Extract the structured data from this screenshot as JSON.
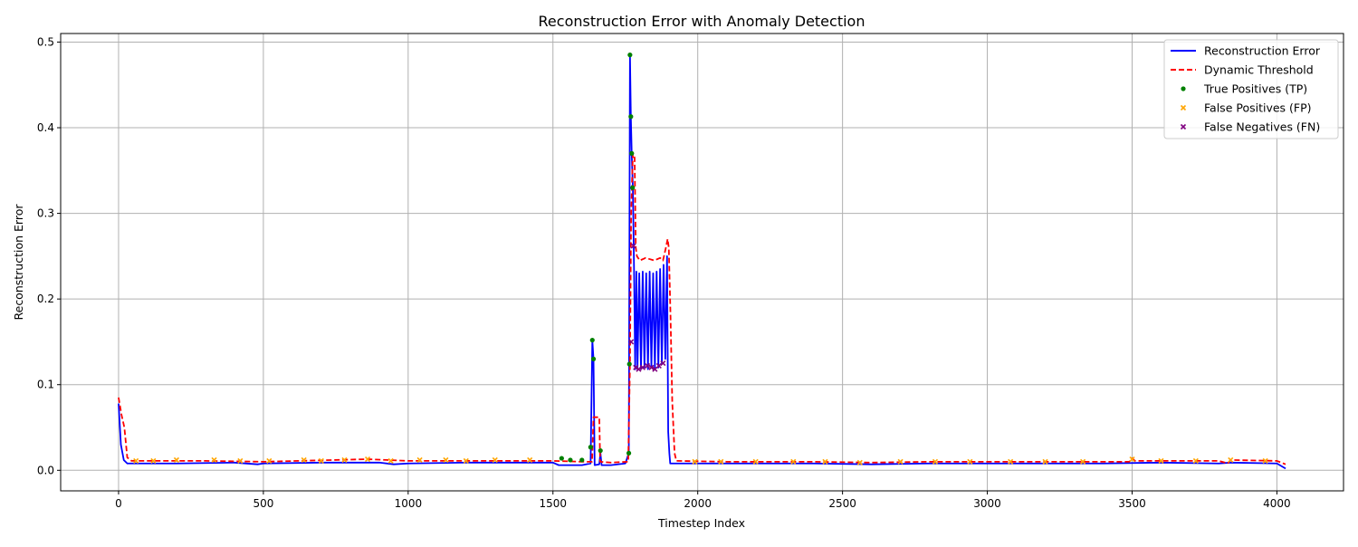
{
  "chart_data": {
    "type": "line",
    "title": "Reconstruction Error with Anomaly Detection",
    "xlabel": "Timestep Index",
    "ylabel": "Reconstruction Error",
    "xlim": [
      -200,
      4230
    ],
    "ylim": [
      -0.024,
      0.51
    ],
    "xticks": [
      0,
      500,
      1000,
      1500,
      2000,
      2500,
      3000,
      3500,
      4000
    ],
    "yticks": [
      0.0,
      0.1,
      0.2,
      0.3,
      0.4,
      0.5
    ],
    "grid": true,
    "legend_position": "top-right",
    "colors": {
      "error": "#0000ff",
      "threshold": "#ff0000",
      "tp": "#008000",
      "fp": "#ffa500",
      "fn": "#800080"
    },
    "series": [
      {
        "name": "Reconstruction Error",
        "style": "solid",
        "points": [
          [
            0,
            0.078
          ],
          [
            8,
            0.03
          ],
          [
            18,
            0.012
          ],
          [
            30,
            0.008
          ],
          [
            200,
            0.008
          ],
          [
            400,
            0.009
          ],
          [
            480,
            0.007
          ],
          [
            500,
            0.008
          ],
          [
            700,
            0.009
          ],
          [
            900,
            0.009
          ],
          [
            950,
            0.007
          ],
          [
            1000,
            0.008
          ],
          [
            1200,
            0.009
          ],
          [
            1400,
            0.009
          ],
          [
            1500,
            0.009
          ],
          [
            1520,
            0.006
          ],
          [
            1600,
            0.006
          ],
          [
            1630,
            0.008
          ],
          [
            1636,
            0.152
          ],
          [
            1640,
            0.13
          ],
          [
            1644,
            0.006
          ],
          [
            1660,
            0.007
          ],
          [
            1664,
            0.02
          ],
          [
            1668,
            0.006
          ],
          [
            1700,
            0.006
          ],
          [
            1750,
            0.008
          ],
          [
            1762,
            0.02
          ],
          [
            1766,
            0.485
          ],
          [
            1769,
            0.413
          ],
          [
            1772,
            0.37
          ],
          [
            1776,
            0.33
          ],
          [
            1780,
            0.235
          ],
          [
            1784,
            0.118
          ],
          [
            1788,
            0.232
          ],
          [
            1792,
            0.12
          ],
          [
            1798,
            0.23
          ],
          [
            1804,
            0.118
          ],
          [
            1810,
            0.232
          ],
          [
            1816,
            0.12
          ],
          [
            1822,
            0.23
          ],
          [
            1828,
            0.118
          ],
          [
            1834,
            0.232
          ],
          [
            1840,
            0.12
          ],
          [
            1846,
            0.23
          ],
          [
            1852,
            0.118
          ],
          [
            1858,
            0.232
          ],
          [
            1864,
            0.12
          ],
          [
            1870,
            0.235
          ],
          [
            1876,
            0.125
          ],
          [
            1882,
            0.24
          ],
          [
            1888,
            0.13
          ],
          [
            1894,
            0.25
          ],
          [
            1898,
            0.045
          ],
          [
            1902,
            0.02
          ],
          [
            1905,
            0.008
          ],
          [
            2000,
            0.008
          ],
          [
            2200,
            0.008
          ],
          [
            2400,
            0.008
          ],
          [
            2600,
            0.007
          ],
          [
            2800,
            0.008
          ],
          [
            3000,
            0.008
          ],
          [
            3200,
            0.008
          ],
          [
            3400,
            0.008
          ],
          [
            3600,
            0.009
          ],
          [
            3800,
            0.008
          ],
          [
            3840,
            0.009
          ],
          [
            4000,
            0.008
          ],
          [
            4020,
            0.004
          ],
          [
            4030,
            0.002
          ]
        ]
      },
      {
        "name": "Dynamic Threshold",
        "style": "dashed",
        "points": [
          [
            0,
            0.085
          ],
          [
            10,
            0.065
          ],
          [
            20,
            0.05
          ],
          [
            30,
            0.015
          ],
          [
            45,
            0.011
          ],
          [
            300,
            0.011
          ],
          [
            500,
            0.01
          ],
          [
            860,
            0.013
          ],
          [
            1000,
            0.011
          ],
          [
            1300,
            0.011
          ],
          [
            1500,
            0.011
          ],
          [
            1600,
            0.01
          ],
          [
            1635,
            0.01
          ],
          [
            1640,
            0.062
          ],
          [
            1660,
            0.062
          ],
          [
            1663,
            0.01
          ],
          [
            1700,
            0.009
          ],
          [
            1760,
            0.01
          ],
          [
            1766,
            0.125
          ],
          [
            1770,
            0.3
          ],
          [
            1776,
            0.37
          ],
          [
            1782,
            0.365
          ],
          [
            1786,
            0.26
          ],
          [
            1790,
            0.25
          ],
          [
            1800,
            0.245
          ],
          [
            1820,
            0.248
          ],
          [
            1850,
            0.245
          ],
          [
            1870,
            0.248
          ],
          [
            1880,
            0.245
          ],
          [
            1890,
            0.26
          ],
          [
            1896,
            0.27
          ],
          [
            1900,
            0.26
          ],
          [
            1906,
            0.18
          ],
          [
            1912,
            0.08
          ],
          [
            1920,
            0.02
          ],
          [
            1926,
            0.011
          ],
          [
            2100,
            0.01
          ],
          [
            2400,
            0.01
          ],
          [
            2600,
            0.009
          ],
          [
            2800,
            0.01
          ],
          [
            3000,
            0.01
          ],
          [
            3200,
            0.01
          ],
          [
            3490,
            0.01
          ],
          [
            3500,
            0.014
          ],
          [
            3510,
            0.011
          ],
          [
            3800,
            0.011
          ],
          [
            3830,
            0.008
          ],
          [
            3840,
            0.012
          ],
          [
            4000,
            0.011
          ],
          [
            4030,
            0.007
          ]
        ]
      }
    ],
    "markers": [
      {
        "name": "True Positives (TP)",
        "shape": "circle",
        "points": [
          [
            1530,
            0.014
          ],
          [
            1560,
            0.012
          ],
          [
            1600,
            0.012
          ],
          [
            1630,
            0.027
          ],
          [
            1636,
            0.152
          ],
          [
            1640,
            0.13
          ],
          [
            1664,
            0.023
          ],
          [
            1762,
            0.02
          ],
          [
            1764,
            0.124
          ],
          [
            1766,
            0.485
          ],
          [
            1769,
            0.413
          ],
          [
            1772,
            0.37
          ],
          [
            1775,
            0.33
          ]
        ]
      },
      {
        "name": "False Positives (FP)",
        "shape": "x",
        "points": [
          [
            60,
            0.011
          ],
          [
            120,
            0.011
          ],
          [
            200,
            0.012
          ],
          [
            330,
            0.012
          ],
          [
            420,
            0.011
          ],
          [
            520,
            0.011
          ],
          [
            640,
            0.012
          ],
          [
            700,
            0.011
          ],
          [
            780,
            0.012
          ],
          [
            860,
            0.013
          ],
          [
            940,
            0.011
          ],
          [
            1040,
            0.012
          ],
          [
            1130,
            0.012
          ],
          [
            1200,
            0.011
          ],
          [
            1300,
            0.012
          ],
          [
            1420,
            0.012
          ],
          [
            1990,
            0.01
          ],
          [
            2080,
            0.01
          ],
          [
            2200,
            0.01
          ],
          [
            2330,
            0.01
          ],
          [
            2440,
            0.01
          ],
          [
            2560,
            0.009
          ],
          [
            2700,
            0.01
          ],
          [
            2820,
            0.01
          ],
          [
            2940,
            0.01
          ],
          [
            3080,
            0.01
          ],
          [
            3200,
            0.01
          ],
          [
            3330,
            0.01
          ],
          [
            3500,
            0.013
          ],
          [
            3600,
            0.011
          ],
          [
            3720,
            0.011
          ],
          [
            3840,
            0.012
          ],
          [
            3960,
            0.011
          ]
        ]
      },
      {
        "name": "False Negatives (FN)",
        "shape": "x",
        "points": [
          [
            1770,
            0.15
          ],
          [
            1778,
            0.262
          ],
          [
            1786,
            0.12
          ],
          [
            1796,
            0.118
          ],
          [
            1810,
            0.12
          ],
          [
            1826,
            0.122
          ],
          [
            1840,
            0.12
          ],
          [
            1852,
            0.118
          ],
          [
            1866,
            0.122
          ],
          [
            1880,
            0.125
          ]
        ]
      }
    ]
  }
}
